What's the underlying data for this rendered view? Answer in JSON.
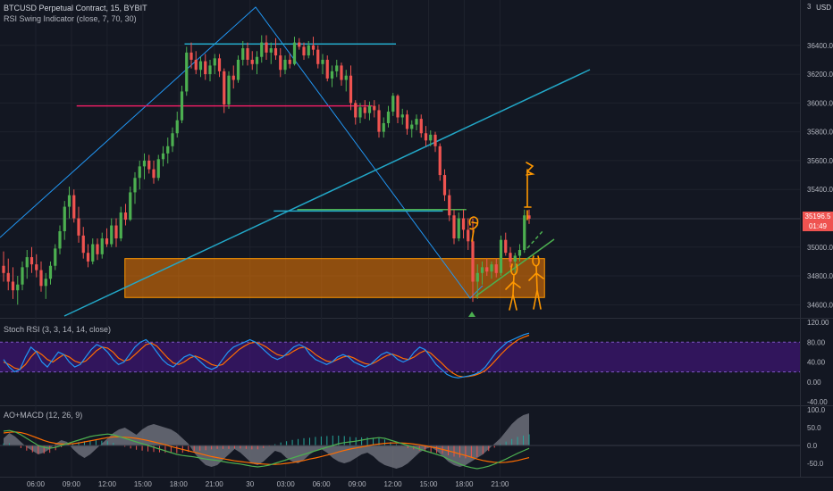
{
  "header": {
    "symbol_line": "BTCUSD Perpetual Contract, 15, BYBIT",
    "indicator_line": "RSI Swing Indicator (close, 7, 70, 30)",
    "currency": "USD"
  },
  "last_price": {
    "value": "35196.5",
    "countdown": "01:49",
    "color": "#ef5350"
  },
  "colors": {
    "background": "#131722",
    "up": "#26a69a",
    "up_alt": "#4caf50",
    "down": "#ef5350",
    "trendline": "#22a7c7",
    "swing": "#2196f3",
    "resistance": "#e91e63",
    "zone": "#f57c00",
    "annotation": "#ff9800",
    "stoch_band": "#4a148c",
    "macd_hist": "#787b86"
  },
  "time_axis": [
    "06:00",
    "09:00",
    "12:00",
    "15:00",
    "18:00",
    "21:00",
    "30",
    "03:00",
    "06:00",
    "09:00",
    "12:00",
    "15:00",
    "18:00",
    "21:00"
  ],
  "main_pane": {
    "price_ticks": [
      "36400.0",
      "36200.0",
      "36000.0",
      "35800.0",
      "35600.0",
      "35400.0",
      "35000.0",
      "34800.0",
      "34600.0"
    ],
    "top_label": "3"
  },
  "stoch_pane": {
    "title": "Stoch RSI (3, 3, 14, 14, close)",
    "ticks": [
      "120.00",
      "80.00",
      "40.00",
      "0.00",
      "-40.00"
    ]
  },
  "macd_pane": {
    "title": "AO+MACD (12, 26, 9)",
    "ticks": [
      "100.0",
      "50.0",
      "0.0",
      "-50.0"
    ]
  },
  "chart_data": {
    "type": "candlestick",
    "symbol": "BTCUSD",
    "timeframe": "15",
    "exchange": "BYBIT",
    "price_range": [
      34540,
      36690
    ],
    "x_range_hours": [
      4,
      22.5
    ],
    "candles": [
      {
        "o": 34870,
        "h": 34970,
        "l": 34760,
        "c": 34820
      },
      {
        "o": 34820,
        "h": 34920,
        "l": 34700,
        "c": 34760
      },
      {
        "o": 34760,
        "h": 34860,
        "l": 34640,
        "c": 34700
      },
      {
        "o": 34700,
        "h": 34800,
        "l": 34600,
        "c": 34740
      },
      {
        "o": 34740,
        "h": 34900,
        "l": 34700,
        "c": 34860
      },
      {
        "o": 34860,
        "h": 34980,
        "l": 34780,
        "c": 34930
      },
      {
        "o": 34930,
        "h": 35000,
        "l": 34820,
        "c": 34880
      },
      {
        "o": 34880,
        "h": 34950,
        "l": 34790,
        "c": 34840
      },
      {
        "o": 34840,
        "h": 34900,
        "l": 34690,
        "c": 34730
      },
      {
        "o": 34730,
        "h": 34820,
        "l": 34640,
        "c": 34780
      },
      {
        "o": 34780,
        "h": 34900,
        "l": 34740,
        "c": 34870
      },
      {
        "o": 34870,
        "h": 35020,
        "l": 34840,
        "c": 34990
      },
      {
        "o": 34990,
        "h": 35150,
        "l": 34950,
        "c": 35110
      },
      {
        "o": 35110,
        "h": 35320,
        "l": 35050,
        "c": 35280
      },
      {
        "o": 35280,
        "h": 35420,
        "l": 35200,
        "c": 35360
      },
      {
        "o": 35360,
        "h": 35400,
        "l": 35170,
        "c": 35200
      },
      {
        "o": 35200,
        "h": 35280,
        "l": 35030,
        "c": 35080
      },
      {
        "o": 35080,
        "h": 35140,
        "l": 34920,
        "c": 34960
      },
      {
        "o": 34960,
        "h": 35020,
        "l": 34860,
        "c": 34900
      },
      {
        "o": 34900,
        "h": 35060,
        "l": 34880,
        "c": 35020
      },
      {
        "o": 35020,
        "h": 35060,
        "l": 34910,
        "c": 34950
      },
      {
        "o": 34950,
        "h": 35100,
        "l": 34920,
        "c": 35060
      },
      {
        "o": 35060,
        "h": 35130,
        "l": 35000,
        "c": 35020
      },
      {
        "o": 35020,
        "h": 35200,
        "l": 35000,
        "c": 35150
      },
      {
        "o": 35150,
        "h": 35200,
        "l": 35000,
        "c": 35060
      },
      {
        "o": 35060,
        "h": 35280,
        "l": 35040,
        "c": 35240
      },
      {
        "o": 35240,
        "h": 35300,
        "l": 35150,
        "c": 35190
      },
      {
        "o": 35190,
        "h": 35420,
        "l": 35180,
        "c": 35380
      },
      {
        "o": 35380,
        "h": 35520,
        "l": 35300,
        "c": 35480
      },
      {
        "o": 35480,
        "h": 35600,
        "l": 35400,
        "c": 35560
      },
      {
        "o": 35560,
        "h": 35650,
        "l": 35470,
        "c": 35600
      },
      {
        "o": 35600,
        "h": 35640,
        "l": 35510,
        "c": 35540
      },
      {
        "o": 35540,
        "h": 35600,
        "l": 35440,
        "c": 35480
      },
      {
        "o": 35480,
        "h": 35640,
        "l": 35460,
        "c": 35610
      },
      {
        "o": 35610,
        "h": 35700,
        "l": 35560,
        "c": 35650
      },
      {
        "o": 35650,
        "h": 35760,
        "l": 35580,
        "c": 35700
      },
      {
        "o": 35700,
        "h": 35830,
        "l": 35660,
        "c": 35790
      },
      {
        "o": 35790,
        "h": 35940,
        "l": 35760,
        "c": 35880
      },
      {
        "o": 35880,
        "h": 36120,
        "l": 35860,
        "c": 36080
      },
      {
        "o": 36080,
        "h": 36390,
        "l": 36050,
        "c": 36350
      },
      {
        "o": 36350,
        "h": 36420,
        "l": 36240,
        "c": 36300
      },
      {
        "o": 36300,
        "h": 36360,
        "l": 36200,
        "c": 36230
      },
      {
        "o": 36230,
        "h": 36320,
        "l": 36180,
        "c": 36290
      },
      {
        "o": 36290,
        "h": 36340,
        "l": 36160,
        "c": 36200
      },
      {
        "o": 36200,
        "h": 36300,
        "l": 36150,
        "c": 36260
      },
      {
        "o": 36260,
        "h": 36340,
        "l": 36200,
        "c": 36310
      },
      {
        "o": 36310,
        "h": 36340,
        "l": 36180,
        "c": 36220
      },
      {
        "o": 36220,
        "h": 36240,
        "l": 35930,
        "c": 35990
      },
      {
        "o": 35990,
        "h": 36220,
        "l": 35960,
        "c": 36190
      },
      {
        "o": 36190,
        "h": 36260,
        "l": 36100,
        "c": 36160
      },
      {
        "o": 36160,
        "h": 36330,
        "l": 36140,
        "c": 36300
      },
      {
        "o": 36300,
        "h": 36430,
        "l": 36260,
        "c": 36380
      },
      {
        "o": 36380,
        "h": 36420,
        "l": 36260,
        "c": 36300
      },
      {
        "o": 36300,
        "h": 36360,
        "l": 36230,
        "c": 36270
      },
      {
        "o": 36270,
        "h": 36360,
        "l": 36200,
        "c": 36320
      },
      {
        "o": 36320,
        "h": 36470,
        "l": 36280,
        "c": 36420
      },
      {
        "o": 36420,
        "h": 36470,
        "l": 36300,
        "c": 36350
      },
      {
        "o": 36350,
        "h": 36420,
        "l": 36270,
        "c": 36380
      },
      {
        "o": 36380,
        "h": 36450,
        "l": 36300,
        "c": 36330
      },
      {
        "o": 36330,
        "h": 36380,
        "l": 36180,
        "c": 36230
      },
      {
        "o": 36230,
        "h": 36330,
        "l": 36200,
        "c": 36300
      },
      {
        "o": 36300,
        "h": 36340,
        "l": 36240,
        "c": 36270
      },
      {
        "o": 36270,
        "h": 36460,
        "l": 36260,
        "c": 36420
      },
      {
        "o": 36420,
        "h": 36450,
        "l": 36370,
        "c": 36390
      },
      {
        "o": 36390,
        "h": 36420,
        "l": 36300,
        "c": 36330
      },
      {
        "o": 36330,
        "h": 36430,
        "l": 36310,
        "c": 36400
      },
      {
        "o": 36400,
        "h": 36460,
        "l": 36330,
        "c": 36370
      },
      {
        "o": 36370,
        "h": 36400,
        "l": 36240,
        "c": 36270
      },
      {
        "o": 36270,
        "h": 36340,
        "l": 36200,
        "c": 36300
      },
      {
        "o": 36300,
        "h": 36330,
        "l": 36150,
        "c": 36170
      },
      {
        "o": 36170,
        "h": 36260,
        "l": 36110,
        "c": 36220
      },
      {
        "o": 36220,
        "h": 36300,
        "l": 36180,
        "c": 36260
      },
      {
        "o": 36260,
        "h": 36280,
        "l": 36120,
        "c": 36160
      },
      {
        "o": 36160,
        "h": 36230,
        "l": 36080,
        "c": 36190
      },
      {
        "o": 36190,
        "h": 36260,
        "l": 35950,
        "c": 36000
      },
      {
        "o": 36000,
        "h": 36020,
        "l": 35850,
        "c": 35900
      },
      {
        "o": 35900,
        "h": 36000,
        "l": 35860,
        "c": 35970
      },
      {
        "o": 35970,
        "h": 36020,
        "l": 35890,
        "c": 35930
      },
      {
        "o": 35930,
        "h": 36010,
        "l": 35880,
        "c": 35980
      },
      {
        "o": 35980,
        "h": 36020,
        "l": 35900,
        "c": 35950
      },
      {
        "o": 35950,
        "h": 35990,
        "l": 35760,
        "c": 35800
      },
      {
        "o": 35800,
        "h": 35900,
        "l": 35760,
        "c": 35860
      },
      {
        "o": 35860,
        "h": 35980,
        "l": 35830,
        "c": 35940
      },
      {
        "o": 35940,
        "h": 36070,
        "l": 35910,
        "c": 36050
      },
      {
        "o": 36050,
        "h": 36060,
        "l": 35860,
        "c": 35900
      },
      {
        "o": 35900,
        "h": 35960,
        "l": 35850,
        "c": 35920
      },
      {
        "o": 35920,
        "h": 35950,
        "l": 35780,
        "c": 35820
      },
      {
        "o": 35820,
        "h": 35880,
        "l": 35760,
        "c": 35850
      },
      {
        "o": 35850,
        "h": 35920,
        "l": 35810,
        "c": 35890
      },
      {
        "o": 35890,
        "h": 35920,
        "l": 35760,
        "c": 35790
      },
      {
        "o": 35790,
        "h": 35840,
        "l": 35700,
        "c": 35740
      },
      {
        "o": 35740,
        "h": 35810,
        "l": 35700,
        "c": 35780
      },
      {
        "o": 35780,
        "h": 35800,
        "l": 35660,
        "c": 35700
      },
      {
        "o": 35700,
        "h": 35720,
        "l": 35460,
        "c": 35500
      },
      {
        "o": 35500,
        "h": 35540,
        "l": 35320,
        "c": 35360
      },
      {
        "o": 35360,
        "h": 35400,
        "l": 35180,
        "c": 35220
      },
      {
        "o": 35220,
        "h": 35260,
        "l": 35020,
        "c": 35060
      },
      {
        "o": 35060,
        "h": 35240,
        "l": 35040,
        "c": 35200
      },
      {
        "o": 35200,
        "h": 35260,
        "l": 35060,
        "c": 35120
      },
      {
        "o": 35120,
        "h": 35200,
        "l": 34980,
        "c": 35040
      },
      {
        "o": 35040,
        "h": 35200,
        "l": 34620,
        "c": 34760
      },
      {
        "o": 34760,
        "h": 34880,
        "l": 34640,
        "c": 34820
      },
      {
        "o": 34820,
        "h": 34900,
        "l": 34740,
        "c": 34860
      },
      {
        "o": 34860,
        "h": 34920,
        "l": 34800,
        "c": 34830
      },
      {
        "o": 34830,
        "h": 34900,
        "l": 34780,
        "c": 34880
      },
      {
        "o": 34880,
        "h": 34920,
        "l": 34790,
        "c": 34820
      },
      {
        "o": 34820,
        "h": 35080,
        "l": 34800,
        "c": 35050
      },
      {
        "o": 35050,
        "h": 35100,
        "l": 34940,
        "c": 34960
      },
      {
        "o": 34960,
        "h": 35000,
        "l": 34860,
        "c": 34900
      },
      {
        "o": 34900,
        "h": 34960,
        "l": 34820,
        "c": 34940
      },
      {
        "o": 34940,
        "h": 35020,
        "l": 34900,
        "c": 34980
      },
      {
        "o": 34980,
        "h": 35260,
        "l": 34960,
        "c": 35220
      },
      {
        "o": 35220,
        "h": 35260,
        "l": 35160,
        "c": 35196.5
      }
    ],
    "horizontal_levels": [
      {
        "price": 36410,
        "from_candle": 50,
        "to_candle": 76,
        "color": "#22a7c7"
      },
      {
        "price": 35980,
        "from_candle": 27,
        "to_candle": 71,
        "color": "#e91e63"
      },
      {
        "price": 35250,
        "from_candle": 69,
        "to_candle": 86,
        "color": "#22a7c7"
      },
      {
        "price": 35260,
        "from_candle": 74,
        "to_candle": 91,
        "color": "#4caf50"
      }
    ],
    "zone": {
      "price_top": 34920,
      "price_bottom": 34650,
      "from_candle": 27,
      "to_candle": 113,
      "color": "#f57c00"
    },
    "stoch_rsi": {
      "range": [
        -40,
        120
      ],
      "levels": [
        80,
        20
      ],
      "k": [
        45,
        30,
        20,
        25,
        50,
        70,
        60,
        40,
        30,
        45,
        60,
        55,
        40,
        30,
        35,
        50,
        65,
        75,
        70,
        60,
        45,
        35,
        40,
        55,
        70,
        80,
        85,
        75,
        60,
        45,
        35,
        30,
        40,
        50,
        55,
        50,
        40,
        30,
        25,
        30,
        45,
        60,
        70,
        75,
        80,
        85,
        80,
        70,
        60,
        50,
        45,
        50,
        60,
        70,
        75,
        70,
        55,
        45,
        40,
        35,
        40,
        50,
        55,
        50,
        40,
        35,
        30,
        35,
        45,
        55,
        60,
        55,
        45,
        40,
        45,
        60,
        70,
        65,
        50,
        35,
        25,
        15,
        10,
        8,
        10,
        12,
        15,
        20,
        30,
        45,
        60,
        70,
        80,
        85,
        90,
        95,
        98
      ],
      "d": [
        40,
        35,
        28,
        25,
        35,
        50,
        62,
        55,
        45,
        40,
        48,
        55,
        50,
        42,
        38,
        42,
        52,
        63,
        70,
        68,
        60,
        48,
        42,
        45,
        55,
        65,
        75,
        78,
        72,
        60,
        48,
        38,
        35,
        40,
        48,
        52,
        48,
        42,
        35,
        32,
        35,
        45,
        55,
        65,
        72,
        78,
        80,
        76,
        70,
        62,
        55,
        52,
        55,
        62,
        68,
        70,
        64,
        55,
        48,
        42,
        40,
        45,
        50,
        52,
        48,
        42,
        37,
        35,
        40,
        47,
        53,
        56,
        52,
        47,
        45,
        50,
        58,
        63,
        58,
        48,
        38,
        27,
        18,
        12,
        10,
        11,
        13,
        17,
        23,
        33,
        45,
        57,
        68,
        77,
        85,
        90,
        94
      ]
    },
    "macd": {
      "range": [
        -75,
        100
      ],
      "ao": [
        20,
        35,
        25,
        10,
        -5,
        -15,
        -25,
        -20,
        -10,
        5,
        15,
        10,
        -10,
        -25,
        -35,
        -25,
        -10,
        5,
        20,
        35,
        45,
        50,
        40,
        30,
        45,
        55,
        60,
        55,
        50,
        45,
        35,
        20,
        5,
        -20,
        -40,
        -55,
        -60,
        -55,
        -40,
        -25,
        -10,
        -20,
        -35,
        -50,
        -55,
        -45,
        -30,
        -15,
        -20,
        -35,
        -45,
        -50,
        -40,
        -25,
        -15,
        -10,
        -20,
        -35,
        -45,
        -50,
        -45,
        -35,
        -25,
        -20,
        -30,
        -45,
        -55,
        -60,
        -65,
        -60,
        -50,
        -35,
        -20,
        -10,
        -5,
        -15,
        -30,
        -45,
        -55,
        -60,
        -55,
        -45,
        -35,
        -25,
        -10,
        5,
        20,
        40,
        60,
        75,
        85,
        90
      ],
      "macd": [
        40,
        42,
        38,
        30,
        20,
        10,
        0,
        -5,
        -8,
        -5,
        0,
        5,
        10,
        15,
        20,
        25,
        28,
        30,
        32,
        30,
        25,
        20,
        15,
        10,
        5,
        0,
        -5,
        -10,
        -15,
        -20,
        -25,
        -28,
        -30,
        -32,
        -35,
        -38,
        -40,
        -42,
        -45,
        -48,
        -50,
        -52,
        -55,
        -58,
        -60,
        -58,
        -55,
        -50,
        -45,
        -40,
        -35,
        -30,
        -25,
        -20,
        -15,
        -10,
        -5,
        0,
        5,
        8,
        10,
        12,
        15,
        18,
        20,
        22,
        20,
        15,
        10,
        5,
        0,
        -5,
        -10,
        -15,
        -20,
        -25,
        -30,
        -38,
        -45,
        -52,
        -58,
        -62,
        -65,
        -62,
        -58,
        -52,
        -45,
        -38,
        -30,
        -22,
        -15,
        -8
      ],
      "signal": [
        35,
        37,
        38,
        36,
        32,
        26,
        20,
        14,
        9,
        6,
        4,
        4,
        5,
        7,
        10,
        13,
        16,
        19,
        22,
        24,
        24,
        23,
        22,
        20,
        17,
        14,
        10,
        6,
        2,
        -3,
        -7,
        -11,
        -15,
        -19,
        -23,
        -27,
        -31,
        -34,
        -37,
        -40,
        -43,
        -45,
        -47,
        -49,
        -51,
        -52,
        -53,
        -53,
        -52,
        -50,
        -48,
        -45,
        -42,
        -38,
        -35,
        -31,
        -27,
        -23,
        -18,
        -14,
        -10,
        -7,
        -4,
        -1,
        2,
        4,
        6,
        7,
        7,
        7,
        6,
        4,
        2,
        -1,
        -4,
        -7,
        -11,
        -15,
        -19,
        -24,
        -28,
        -33,
        -38,
        -42,
        -45,
        -47,
        -48,
        -47,
        -45,
        -42,
        -38,
        -34
      ]
    }
  }
}
